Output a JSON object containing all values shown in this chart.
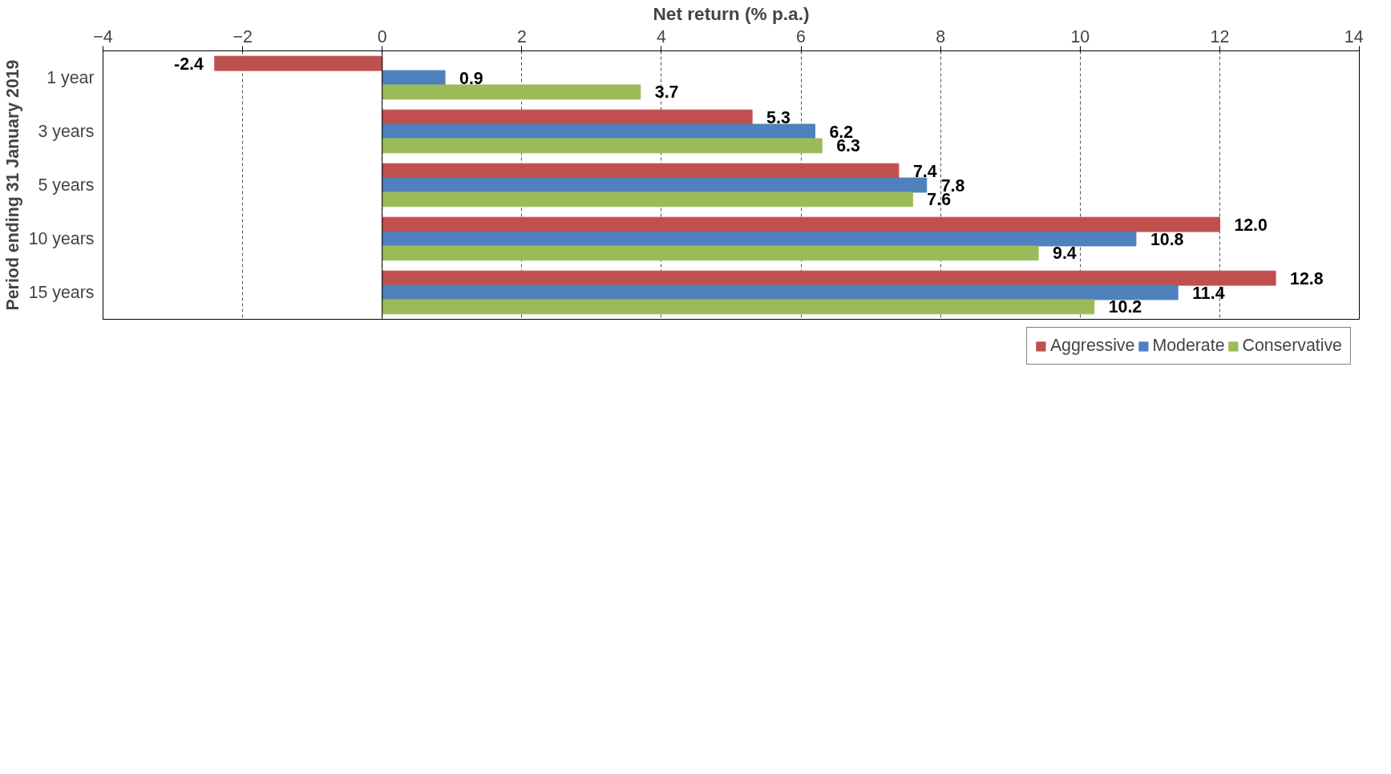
{
  "chart_data": {
    "type": "bar",
    "orientation": "horizontal",
    "xlabel": "Net return (% p.a.)",
    "ylabel": "Period ending 31 January 2019",
    "categories": [
      "1 year",
      "3 years",
      "5 years",
      "10 years",
      "15 years"
    ],
    "series": [
      {
        "name": "Aggressive",
        "color": "#c0504d",
        "values": [
          -2.4,
          5.3,
          7.4,
          12.0,
          12.8
        ]
      },
      {
        "name": "Moderate",
        "color": "#4f81bd",
        "values": [
          0.9,
          6.2,
          7.8,
          10.8,
          11.4
        ]
      },
      {
        "name": "Conservative",
        "color": "#9bbb59",
        "values": [
          3.7,
          6.3,
          7.6,
          9.4,
          10.2
        ]
      }
    ],
    "value_labels": [
      [
        "-2.4",
        "5.3",
        "7.4",
        "12.0",
        "12.8"
      ],
      [
        "0.9",
        "6.2",
        "7.8",
        "10.8",
        "11.4"
      ],
      [
        "3.7",
        "6.3",
        "7.6",
        "9.4",
        "10.2"
      ]
    ],
    "xlim": [
      -4,
      14
    ],
    "xticks": [
      -4,
      -2,
      0,
      2,
      4,
      6,
      8,
      10,
      12,
      14
    ],
    "grid": "x",
    "legend": "bottom"
  }
}
